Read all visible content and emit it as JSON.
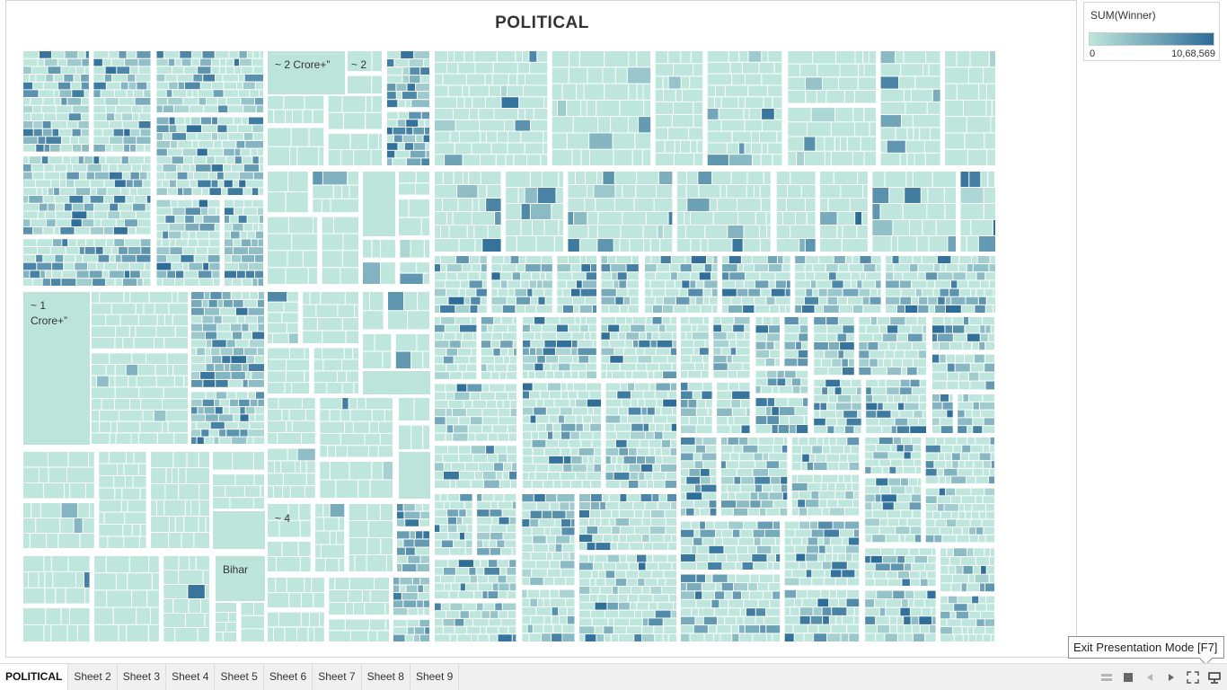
{
  "title": "POLITICAL",
  "chart_data": {
    "type": "treemap",
    "title": "POLITICAL",
    "color_field": "SUM(Winner)",
    "color_range": [
      0,
      1068569
    ],
    "color_range_labels": [
      "0",
      "10,68,569"
    ],
    "color_low": "#bfe6dc",
    "color_high": "#2d6c98",
    "visible_labels": [
      "~ 2 Crore+”",
      "~ 2",
      "~ 1 Crore+”",
      "~ 4",
      "Bihar"
    ]
  },
  "legend": {
    "title": "SUM(Winner)",
    "min_label": "0",
    "max_label": "10,68,569"
  },
  "tooltip": {
    "text": "Exit Presentation Mode [F7]"
  },
  "tabs": [
    {
      "label": "POLITICAL",
      "active": true
    },
    {
      "label": "Sheet 2"
    },
    {
      "label": "Sheet 3"
    },
    {
      "label": "Sheet 4"
    },
    {
      "label": "Sheet 5"
    },
    {
      "label": "Sheet 6"
    },
    {
      "label": "Sheet 7"
    },
    {
      "label": "Sheet 8"
    },
    {
      "label": "Sheet 9"
    }
  ],
  "controls": [
    "show-tabs-icon",
    "stop-icon",
    "back-icon",
    "forward-icon",
    "fullscreen-icon",
    "presentation-mode-icon"
  ]
}
